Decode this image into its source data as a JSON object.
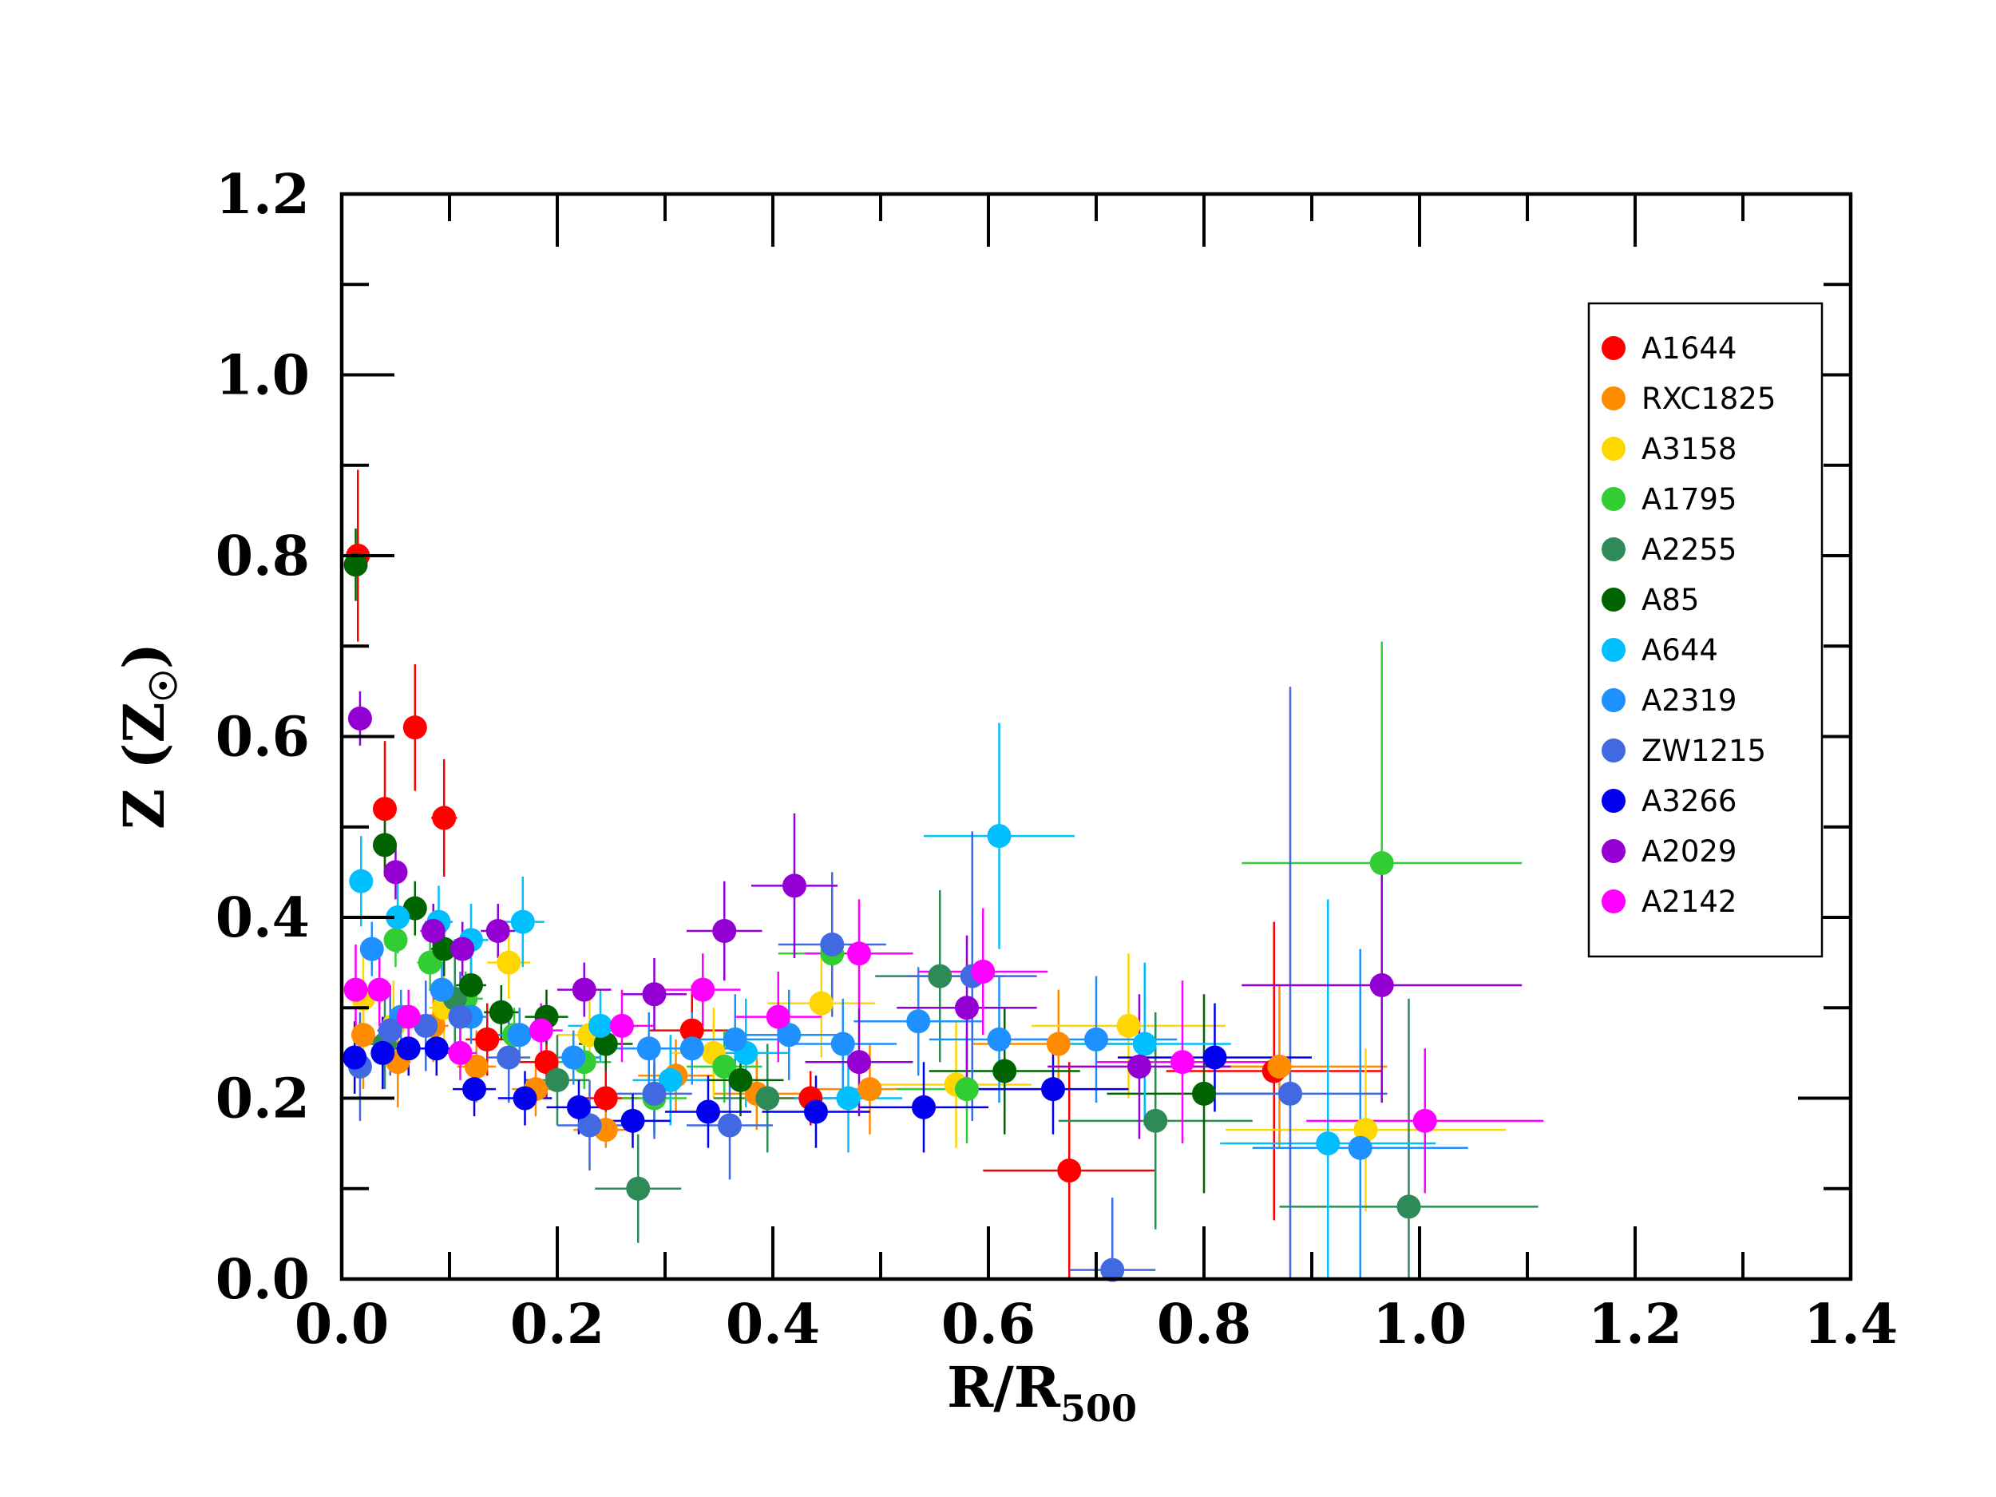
{
  "chart_data": {
    "type": "scatter",
    "xlabel_main": "R/R",
    "xlabel_sub": "500",
    "ylabel_main": "Z (Z",
    "ylabel_symbol": "☉",
    "ylabel_close": ")",
    "xlim": [
      0.0,
      1.4
    ],
    "ylim": [
      0.0,
      1.2
    ],
    "x_ticks": [
      "0.0",
      "0.2",
      "0.4",
      "0.6",
      "0.8",
      "1.0",
      "1.2",
      "1.4"
    ],
    "y_ticks": [
      "0.0",
      "0.2",
      "0.4",
      "0.6",
      "0.8",
      "1.0",
      "1.2"
    ],
    "grid": false,
    "legend_position": "upper-right",
    "series": [
      {
        "name": "A1644",
        "color": "#ff0000",
        "points": [
          {
            "x": 0.015,
            "y": 0.8,
            "xerr": 0.006,
            "yerr": 0.095
          },
          {
            "x": 0.04,
            "y": 0.52,
            "xerr": 0.01,
            "yerr": 0.075
          },
          {
            "x": 0.068,
            "y": 0.61,
            "xerr": 0.011,
            "yerr": 0.07
          },
          {
            "x": 0.095,
            "y": 0.51,
            "xerr": 0.012,
            "yerr": 0.065
          },
          {
            "x": 0.135,
            "y": 0.265,
            "xerr": 0.02,
            "yerr": 0.04
          },
          {
            "x": 0.19,
            "y": 0.24,
            "xerr": 0.025,
            "yerr": 0.04
          },
          {
            "x": 0.245,
            "y": 0.2,
            "xerr": 0.03,
            "yerr": 0.05
          },
          {
            "x": 0.325,
            "y": 0.275,
            "xerr": 0.04,
            "yerr": 0.05
          },
          {
            "x": 0.435,
            "y": 0.2,
            "xerr": 0.05,
            "yerr": 0.03
          },
          {
            "x": 0.675,
            "y": 0.12,
            "xerr": 0.08,
            "yerr": 0.12
          },
          {
            "x": 0.865,
            "y": 0.23,
            "xerr": 0.1,
            "yerr": 0.165
          }
        ]
      },
      {
        "name": "RXC1825",
        "color": "#ff8c00",
        "points": [
          {
            "x": 0.02,
            "y": 0.27,
            "xerr": 0.008,
            "yerr": 0.06
          },
          {
            "x": 0.052,
            "y": 0.24,
            "xerr": 0.012,
            "yerr": 0.05
          },
          {
            "x": 0.085,
            "y": 0.28,
            "xerr": 0.014,
            "yerr": 0.04
          },
          {
            "x": 0.125,
            "y": 0.235,
            "xerr": 0.018,
            "yerr": 0.04
          },
          {
            "x": 0.18,
            "y": 0.21,
            "xerr": 0.022,
            "yerr": 0.03
          },
          {
            "x": 0.245,
            "y": 0.165,
            "xerr": 0.03,
            "yerr": 0.02
          },
          {
            "x": 0.31,
            "y": 0.225,
            "xerr": 0.035,
            "yerr": 0.04
          },
          {
            "x": 0.385,
            "y": 0.205,
            "xerr": 0.04,
            "yerr": 0.04
          },
          {
            "x": 0.49,
            "y": 0.21,
            "xerr": 0.05,
            "yerr": 0.05
          },
          {
            "x": 0.665,
            "y": 0.26,
            "xerr": 0.08,
            "yerr": 0.06
          },
          {
            "x": 0.87,
            "y": 0.235,
            "xerr": 0.1,
            "yerr": 0.09
          }
        ]
      },
      {
        "name": "A3158",
        "color": "#ffd700",
        "points": [
          {
            "x": 0.02,
            "y": 0.31,
            "xerr": 0.008,
            "yerr": 0.06
          },
          {
            "x": 0.048,
            "y": 0.28,
            "xerr": 0.012,
            "yerr": 0.05
          },
          {
            "x": 0.095,
            "y": 0.3,
            "xerr": 0.014,
            "yerr": 0.04
          },
          {
            "x": 0.155,
            "y": 0.35,
            "xerr": 0.02,
            "yerr": 0.04
          },
          {
            "x": 0.23,
            "y": 0.27,
            "xerr": 0.03,
            "yerr": 0.04
          },
          {
            "x": 0.345,
            "y": 0.25,
            "xerr": 0.04,
            "yerr": 0.05
          },
          {
            "x": 0.445,
            "y": 0.305,
            "xerr": 0.05,
            "yerr": 0.06
          },
          {
            "x": 0.57,
            "y": 0.215,
            "xerr": 0.07,
            "yerr": 0.07
          },
          {
            "x": 0.73,
            "y": 0.28,
            "xerr": 0.09,
            "yerr": 0.08
          },
          {
            "x": 0.95,
            "y": 0.165,
            "xerr": 0.13,
            "yerr": 0.09
          }
        ]
      },
      {
        "name": "A1795",
        "color": "#32cd32",
        "points": [
          {
            "x": 0.05,
            "y": 0.375,
            "xerr": 0.01,
            "yerr": 0.03
          },
          {
            "x": 0.082,
            "y": 0.35,
            "xerr": 0.012,
            "yerr": 0.03
          },
          {
            "x": 0.115,
            "y": 0.31,
            "xerr": 0.016,
            "yerr": 0.03
          },
          {
            "x": 0.16,
            "y": 0.27,
            "xerr": 0.02,
            "yerr": 0.03
          },
          {
            "x": 0.225,
            "y": 0.24,
            "xerr": 0.025,
            "yerr": 0.03
          },
          {
            "x": 0.29,
            "y": 0.2,
            "xerr": 0.03,
            "yerr": 0.04
          },
          {
            "x": 0.355,
            "y": 0.235,
            "xerr": 0.035,
            "yerr": 0.04
          },
          {
            "x": 0.455,
            "y": 0.36,
            "xerr": 0.05,
            "yerr": 0.05
          },
          {
            "x": 0.58,
            "y": 0.21,
            "xerr": 0.065,
            "yerr": 0.06
          },
          {
            "x": 0.965,
            "y": 0.46,
            "xerr": 0.13,
            "yerr": 0.245
          }
        ]
      },
      {
        "name": "A2255",
        "color": "#2e8b57",
        "points": [
          {
            "x": 0.04,
            "y": 0.26,
            "xerr": 0.015,
            "yerr": 0.05
          },
          {
            "x": 0.105,
            "y": 0.31,
            "xerr": 0.02,
            "yerr": 0.06
          },
          {
            "x": 0.2,
            "y": 0.22,
            "xerr": 0.03,
            "yerr": 0.05
          },
          {
            "x": 0.275,
            "y": 0.1,
            "xerr": 0.04,
            "yerr": 0.06
          },
          {
            "x": 0.395,
            "y": 0.2,
            "xerr": 0.05,
            "yerr": 0.06
          },
          {
            "x": 0.555,
            "y": 0.335,
            "xerr": 0.06,
            "yerr": 0.095
          },
          {
            "x": 0.755,
            "y": 0.175,
            "xerr": 0.09,
            "yerr": 0.12
          },
          {
            "x": 0.99,
            "y": 0.08,
            "xerr": 0.12,
            "yerr": 0.23
          }
        ]
      },
      {
        "name": "A85",
        "color": "#006400",
        "points": [
          {
            "x": 0.013,
            "y": 0.79,
            "xerr": 0.005,
            "yerr": 0.04
          },
          {
            "x": 0.04,
            "y": 0.48,
            "xerr": 0.008,
            "yerr": 0.03
          },
          {
            "x": 0.068,
            "y": 0.41,
            "xerr": 0.01,
            "yerr": 0.03
          },
          {
            "x": 0.095,
            "y": 0.365,
            "xerr": 0.012,
            "yerr": 0.03
          },
          {
            "x": 0.12,
            "y": 0.325,
            "xerr": 0.014,
            "yerr": 0.03
          },
          {
            "x": 0.148,
            "y": 0.295,
            "xerr": 0.016,
            "yerr": 0.03
          },
          {
            "x": 0.19,
            "y": 0.29,
            "xerr": 0.02,
            "yerr": 0.03
          },
          {
            "x": 0.245,
            "y": 0.26,
            "xerr": 0.025,
            "yerr": 0.03
          },
          {
            "x": 0.37,
            "y": 0.22,
            "xerr": 0.04,
            "yerr": 0.04
          },
          {
            "x": 0.615,
            "y": 0.23,
            "xerr": 0.07,
            "yerr": 0.07
          },
          {
            "x": 0.8,
            "y": 0.205,
            "xerr": 0.09,
            "yerr": 0.11
          }
        ]
      },
      {
        "name": "A644",
        "color": "#00bfff",
        "points": [
          {
            "x": 0.018,
            "y": 0.44,
            "xerr": 0.007,
            "yerr": 0.05
          },
          {
            "x": 0.052,
            "y": 0.4,
            "xerr": 0.01,
            "yerr": 0.04
          },
          {
            "x": 0.09,
            "y": 0.395,
            "xerr": 0.013,
            "yerr": 0.04
          },
          {
            "x": 0.12,
            "y": 0.375,
            "xerr": 0.016,
            "yerr": 0.04
          },
          {
            "x": 0.168,
            "y": 0.395,
            "xerr": 0.02,
            "yerr": 0.05
          },
          {
            "x": 0.24,
            "y": 0.28,
            "xerr": 0.03,
            "yerr": 0.04
          },
          {
            "x": 0.305,
            "y": 0.22,
            "xerr": 0.035,
            "yerr": 0.05
          },
          {
            "x": 0.375,
            "y": 0.25,
            "xerr": 0.04,
            "yerr": 0.06
          },
          {
            "x": 0.47,
            "y": 0.2,
            "xerr": 0.05,
            "yerr": 0.06
          },
          {
            "x": 0.61,
            "y": 0.49,
            "xerr": 0.07,
            "yerr": 0.125
          },
          {
            "x": 0.745,
            "y": 0.26,
            "xerr": 0.08,
            "yerr": 0.09
          },
          {
            "x": 0.915,
            "y": 0.15,
            "xerr": 0.1,
            "yerr": 0.27
          }
        ]
      },
      {
        "name": "A2319",
        "color": "#1e90ff",
        "points": [
          {
            "x": 0.028,
            "y": 0.365,
            "xerr": 0.008,
            "yerr": 0.03
          },
          {
            "x": 0.055,
            "y": 0.29,
            "xerr": 0.01,
            "yerr": 0.03
          },
          {
            "x": 0.093,
            "y": 0.32,
            "xerr": 0.012,
            "yerr": 0.03
          },
          {
            "x": 0.12,
            "y": 0.29,
            "xerr": 0.015,
            "yerr": 0.03
          },
          {
            "x": 0.165,
            "y": 0.27,
            "xerr": 0.02,
            "yerr": 0.03
          },
          {
            "x": 0.215,
            "y": 0.245,
            "xerr": 0.025,
            "yerr": 0.03
          },
          {
            "x": 0.285,
            "y": 0.255,
            "xerr": 0.03,
            "yerr": 0.04
          },
          {
            "x": 0.325,
            "y": 0.255,
            "xerr": 0.035,
            "yerr": 0.04
          },
          {
            "x": 0.365,
            "y": 0.265,
            "xerr": 0.04,
            "yerr": 0.05
          },
          {
            "x": 0.415,
            "y": 0.27,
            "xerr": 0.045,
            "yerr": 0.05
          },
          {
            "x": 0.465,
            "y": 0.26,
            "xerr": 0.05,
            "yerr": 0.05
          },
          {
            "x": 0.535,
            "y": 0.285,
            "xerr": 0.06,
            "yerr": 0.06
          },
          {
            "x": 0.61,
            "y": 0.265,
            "xerr": 0.065,
            "yerr": 0.07
          },
          {
            "x": 0.7,
            "y": 0.265,
            "xerr": 0.075,
            "yerr": 0.07
          },
          {
            "x": 0.945,
            "y": 0.145,
            "xerr": 0.1,
            "yerr": 0.22
          }
        ]
      },
      {
        "name": "ZW1215",
        "color": "#4169e1",
        "points": [
          {
            "x": 0.017,
            "y": 0.235,
            "xerr": 0.01,
            "yerr": 0.06
          },
          {
            "x": 0.045,
            "y": 0.275,
            "xerr": 0.012,
            "yerr": 0.05
          },
          {
            "x": 0.078,
            "y": 0.28,
            "xerr": 0.014,
            "yerr": 0.05
          },
          {
            "x": 0.11,
            "y": 0.29,
            "xerr": 0.016,
            "yerr": 0.05
          },
          {
            "x": 0.155,
            "y": 0.245,
            "xerr": 0.02,
            "yerr": 0.05
          },
          {
            "x": 0.23,
            "y": 0.17,
            "xerr": 0.03,
            "yerr": 0.05
          },
          {
            "x": 0.29,
            "y": 0.205,
            "xerr": 0.035,
            "yerr": 0.05
          },
          {
            "x": 0.36,
            "y": 0.17,
            "xerr": 0.04,
            "yerr": 0.06
          },
          {
            "x": 0.455,
            "y": 0.37,
            "xerr": 0.05,
            "yerr": 0.08
          },
          {
            "x": 0.585,
            "y": 0.335,
            "xerr": 0.06,
            "yerr": 0.16
          },
          {
            "x": 0.715,
            "y": 0.01,
            "xerr": 0.04,
            "yerr": 0.08
          },
          {
            "x": 0.88,
            "y": 0.205,
            "xerr": 0.09,
            "yerr": 0.45
          }
        ]
      },
      {
        "name": "A3266",
        "color": "#0000ee",
        "points": [
          {
            "x": 0.012,
            "y": 0.245,
            "xerr": 0.008,
            "yerr": 0.04
          },
          {
            "x": 0.038,
            "y": 0.25,
            "xerr": 0.01,
            "yerr": 0.04
          },
          {
            "x": 0.062,
            "y": 0.255,
            "xerr": 0.012,
            "yerr": 0.03
          },
          {
            "x": 0.088,
            "y": 0.255,
            "xerr": 0.014,
            "yerr": 0.03
          },
          {
            "x": 0.123,
            "y": 0.21,
            "xerr": 0.02,
            "yerr": 0.03
          },
          {
            "x": 0.17,
            "y": 0.2,
            "xerr": 0.025,
            "yerr": 0.03
          },
          {
            "x": 0.22,
            "y": 0.19,
            "xerr": 0.03,
            "yerr": 0.03
          },
          {
            "x": 0.27,
            "y": 0.175,
            "xerr": 0.035,
            "yerr": 0.03
          },
          {
            "x": 0.34,
            "y": 0.185,
            "xerr": 0.04,
            "yerr": 0.04
          },
          {
            "x": 0.44,
            "y": 0.185,
            "xerr": 0.05,
            "yerr": 0.04
          },
          {
            "x": 0.54,
            "y": 0.19,
            "xerr": 0.06,
            "yerr": 0.05
          },
          {
            "x": 0.66,
            "y": 0.21,
            "xerr": 0.07,
            "yerr": 0.05
          },
          {
            "x": 0.81,
            "y": 0.245,
            "xerr": 0.09,
            "yerr": 0.06
          }
        ]
      },
      {
        "name": "A2029",
        "color": "#9400d3",
        "points": [
          {
            "x": 0.017,
            "y": 0.62,
            "xerr": 0.006,
            "yerr": 0.03
          },
          {
            "x": 0.05,
            "y": 0.45,
            "xerr": 0.008,
            "yerr": 0.03
          },
          {
            "x": 0.085,
            "y": 0.385,
            "xerr": 0.012,
            "yerr": 0.03
          },
          {
            "x": 0.112,
            "y": 0.365,
            "xerr": 0.014,
            "yerr": 0.03
          },
          {
            "x": 0.145,
            "y": 0.385,
            "xerr": 0.016,
            "yerr": 0.03
          },
          {
            "x": 0.225,
            "y": 0.32,
            "xerr": 0.025,
            "yerr": 0.03
          },
          {
            "x": 0.29,
            "y": 0.315,
            "xerr": 0.03,
            "yerr": 0.04
          },
          {
            "x": 0.355,
            "y": 0.385,
            "xerr": 0.035,
            "yerr": 0.055
          },
          {
            "x": 0.42,
            "y": 0.435,
            "xerr": 0.04,
            "yerr": 0.08
          },
          {
            "x": 0.48,
            "y": 0.24,
            "xerr": 0.05,
            "yerr": 0.06
          },
          {
            "x": 0.58,
            "y": 0.3,
            "xerr": 0.065,
            "yerr": 0.08
          },
          {
            "x": 0.74,
            "y": 0.235,
            "xerr": 0.085,
            "yerr": 0.08
          },
          {
            "x": 0.965,
            "y": 0.325,
            "xerr": 0.13,
            "yerr": 0.13
          }
        ]
      },
      {
        "name": "A2142",
        "color": "#ff00ff",
        "points": [
          {
            "x": 0.013,
            "y": 0.32,
            "xerr": 0.008,
            "yerr": 0.05
          },
          {
            "x": 0.035,
            "y": 0.32,
            "xerr": 0.01,
            "yerr": 0.04
          },
          {
            "x": 0.062,
            "y": 0.29,
            "xerr": 0.012,
            "yerr": 0.03
          },
          {
            "x": 0.11,
            "y": 0.25,
            "xerr": 0.015,
            "yerr": 0.03
          },
          {
            "x": 0.185,
            "y": 0.275,
            "xerr": 0.02,
            "yerr": 0.03
          },
          {
            "x": 0.26,
            "y": 0.28,
            "xerr": 0.03,
            "yerr": 0.04
          },
          {
            "x": 0.335,
            "y": 0.32,
            "xerr": 0.035,
            "yerr": 0.04
          },
          {
            "x": 0.405,
            "y": 0.29,
            "xerr": 0.04,
            "yerr": 0.05
          },
          {
            "x": 0.48,
            "y": 0.36,
            "xerr": 0.05,
            "yerr": 0.06
          },
          {
            "x": 0.595,
            "y": 0.34,
            "xerr": 0.06,
            "yerr": 0.07
          },
          {
            "x": 0.78,
            "y": 0.24,
            "xerr": 0.08,
            "yerr": 0.09
          },
          {
            "x": 1.005,
            "y": 0.175,
            "xerr": 0.11,
            "yerr": 0.08
          }
        ]
      }
    ]
  }
}
